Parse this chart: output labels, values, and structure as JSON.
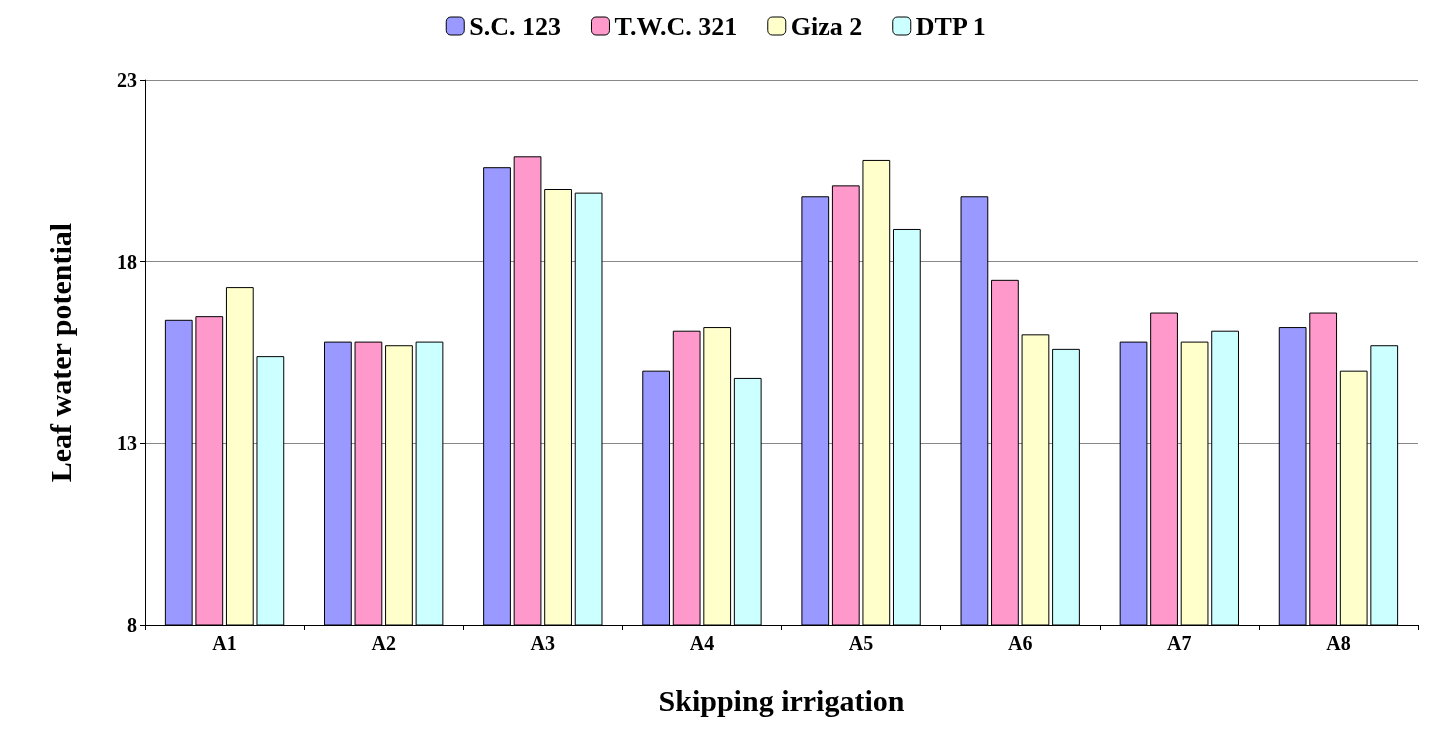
{
  "chart_data": {
    "type": "bar",
    "xlabel": "Skipping irrigation",
    "ylabel": "Leaf water potential",
    "categories": [
      "A1",
      "A2",
      "A3",
      "A4",
      "A5",
      "A6",
      "A7",
      "A8"
    ],
    "series": [
      {
        "name": "S.C. 123",
        "color": "#9999ff",
        "values": [
          16.4,
          15.8,
          20.6,
          15.0,
          19.8,
          19.8,
          15.8,
          16.2
        ]
      },
      {
        "name": "T.W.C. 321",
        "color": "#ff99cc",
        "values": [
          16.5,
          15.8,
          20.9,
          16.1,
          20.1,
          17.5,
          16.6,
          16.6
        ]
      },
      {
        "name": "Giza 2",
        "color": "#ffffcc",
        "values": [
          17.3,
          15.7,
          20.0,
          16.2,
          20.8,
          16.0,
          15.8,
          15.0
        ]
      },
      {
        "name": "DTP 1",
        "color": "#ccffff",
        "values": [
          15.4,
          15.8,
          19.9,
          14.8,
          18.9,
          15.6,
          16.1,
          15.7
        ]
      }
    ],
    "ylim": [
      8,
      23
    ],
    "yticks": [
      8,
      13,
      18,
      23
    ],
    "grid": "y",
    "legend": "top"
  }
}
